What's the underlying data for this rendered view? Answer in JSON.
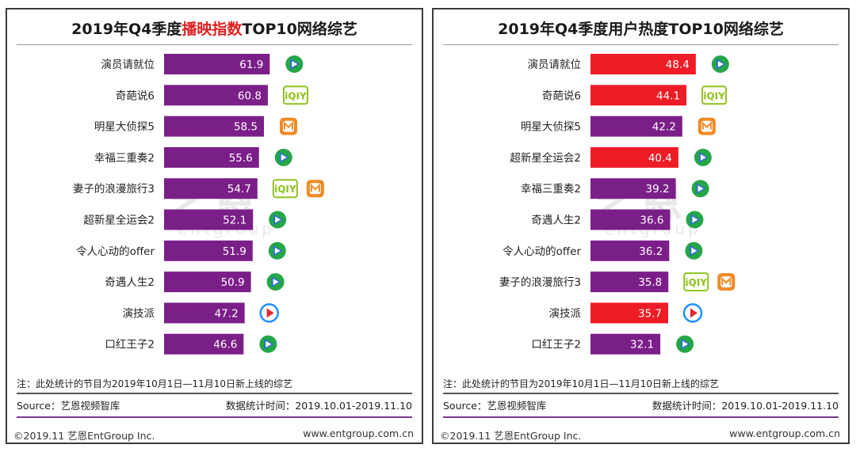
{
  "colors": {
    "purple": "#7b1f88",
    "red": "#ee1c25",
    "tencent_green": "#25a647",
    "tencent_play": "#2f6fd1",
    "iqiyi_green": "#8dc21f",
    "mango_orange": "#f08a24",
    "youku_blue": "#1e90ff"
  },
  "left": {
    "title_pre": "2019年Q4季度",
    "title_highlight": "播映指数",
    "title_post": "TOP10网络综艺",
    "note": "注：此处统计的节目为2019年10月1日—11月10日新上线的综艺",
    "source": "Source：艺恩视频智库",
    "period": "数据统计时间：2019.10.01-2019.11.10",
    "copyright": "©2019.11 艺恩EntGroup Inc.",
    "website": "www.entgroup.com.cn",
    "watermark": "艺恩",
    "watermark_sub": "entgroup"
  },
  "right": {
    "title": "2019年Q4季度用户热度TOP10网络综艺",
    "note": "注：此处统计的节目为2019年10月1日—11月10日新上线的综艺",
    "source": "Source：艺恩视频智库",
    "period": "数据统计时间：2019.10.01-2019.11.10",
    "copyright": "©2019.11 艺恩EntGroup Inc.",
    "website": "www.entgroup.com.cn",
    "watermark": "艺恩",
    "watermark_sub": "entgroup"
  },
  "chart_data": [
    {
      "type": "bar",
      "orientation": "horizontal",
      "title": "2019年Q4季度播映指数TOP10网络综艺",
      "categories": [
        "演员请就位",
        "奇葩说6",
        "明星大侦探5",
        "幸福三重奏2",
        "妻子的浪漫旅行3",
        "超新星全运会2",
        "令人心动的offer",
        "奇遇人生2",
        "演技派",
        "口红王子2"
      ],
      "values": [
        61.9,
        60.8,
        58.5,
        55.6,
        54.7,
        52.1,
        51.9,
        50.9,
        47.2,
        46.6
      ],
      "bar_colors": [
        "purple",
        "purple",
        "purple",
        "purple",
        "purple",
        "purple",
        "purple",
        "purple",
        "purple",
        "purple"
      ],
      "platforms": [
        [
          "tencent"
        ],
        [
          "iqiyi"
        ],
        [
          "mango"
        ],
        [
          "tencent"
        ],
        [
          "iqiyi",
          "mango"
        ],
        [
          "tencent"
        ],
        [
          "tencent"
        ],
        [
          "tencent"
        ],
        [
          "youku"
        ],
        [
          "tencent"
        ]
      ],
      "xlim": [
        0,
        65
      ]
    },
    {
      "type": "bar",
      "orientation": "horizontal",
      "title": "2019年Q4季度用户热度TOP10网络综艺",
      "categories": [
        "演员请就位",
        "奇葩说6",
        "明星大侦探5",
        "超新星全运会2",
        "幸福三重奏2",
        "奇遇人生2",
        "令人心动的offer",
        "妻子的浪漫旅行3",
        "演技派",
        "口红王子2"
      ],
      "values": [
        48.4,
        44.1,
        42.2,
        40.4,
        39.2,
        36.6,
        36.2,
        35.8,
        35.7,
        32.1
      ],
      "bar_colors": [
        "red",
        "red",
        "purple",
        "red",
        "purple",
        "purple",
        "purple",
        "purple",
        "red",
        "purple"
      ],
      "platforms": [
        [
          "tencent"
        ],
        [
          "iqiyi"
        ],
        [
          "mango"
        ],
        [
          "tencent"
        ],
        [
          "tencent"
        ],
        [
          "tencent"
        ],
        [
          "tencent"
        ],
        [
          "iqiyi",
          "mango"
        ],
        [
          "youku"
        ],
        [
          "tencent"
        ]
      ],
      "xlim": [
        0,
        51
      ]
    }
  ]
}
